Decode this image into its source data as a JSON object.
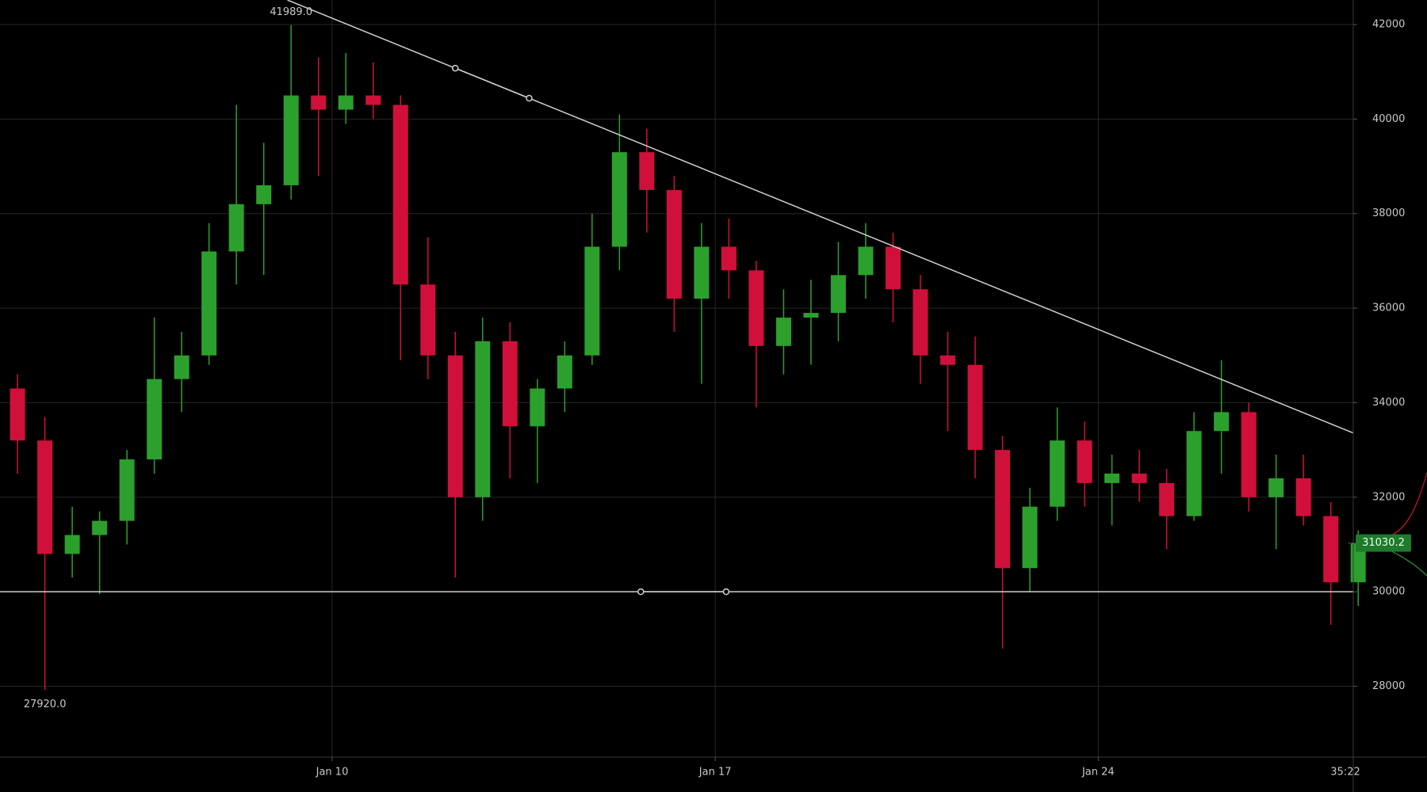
{
  "chart_data": {
    "type": "candlestick",
    "x": [
      4.0,
      4.5,
      5.0,
      5.5,
      6.0,
      6.5,
      7.0,
      7.5,
      8.0,
      8.5,
      9.0,
      9.5,
      10.0,
      10.5,
      11.0,
      11.5,
      12.0,
      12.5,
      13.0,
      13.5,
      14.0,
      14.5,
      15.0,
      15.5,
      16.0,
      16.5,
      17.0,
      17.5,
      18.0,
      18.5,
      19.0,
      19.5,
      20.0,
      20.5,
      21.0,
      21.5,
      22.0,
      22.5,
      23.0,
      23.5,
      24.0,
      24.5,
      25.0,
      25.5,
      26.0,
      26.5,
      27.0,
      27.5,
      28.0,
      28.5
    ],
    "open": [
      34300,
      33200,
      30800,
      31200,
      31500,
      32800,
      34500,
      35000,
      37200,
      38200,
      38600,
      40500,
      40200,
      40500,
      40300,
      36500,
      35000,
      32000,
      35300,
      33500,
      34300,
      35000,
      37300,
      39300,
      38500,
      36200,
      37300,
      36800,
      35200,
      35800,
      35900,
      36700,
      37300,
      36400,
      35000,
      34800,
      33000,
      30500,
      31800,
      33200,
      32300,
      32500,
      32300,
      31600,
      33400,
      33800,
      32000,
      32400,
      31600,
      30200
    ],
    "high": [
      34600,
      33700,
      31800,
      31700,
      33000,
      35800,
      35500,
      37800,
      40300,
      39500,
      41989,
      41300,
      41400,
      41200,
      40500,
      37500,
      35500,
      35800,
      35700,
      34500,
      35300,
      38000,
      40100,
      39800,
      38800,
      37800,
      37900,
      37000,
      36400,
      36600,
      37400,
      37800,
      37600,
      36700,
      35500,
      35400,
      33300,
      32200,
      33900,
      33600,
      32900,
      33000,
      32600,
      33800,
      34900,
      34000,
      32900,
      32900,
      31900,
      31300
    ],
    "low": [
      32500,
      27920,
      30300,
      29950,
      31000,
      32500,
      33800,
      34800,
      36500,
      36700,
      38300,
      38800,
      39900,
      40000,
      34900,
      34500,
      30300,
      31500,
      32400,
      32300,
      33800,
      34800,
      36800,
      37600,
      35500,
      34400,
      36200,
      33900,
      34600,
      34800,
      35300,
      36200,
      35700,
      34400,
      33400,
      32400,
      28800,
      30000,
      31500,
      31800,
      31400,
      31900,
      30900,
      31500,
      32500,
      31700,
      30900,
      31400,
      29300,
      29700
    ],
    "close": [
      33200,
      30800,
      31200,
      31500,
      32800,
      34500,
      35000,
      37200,
      38200,
      38600,
      40500,
      40200,
      40500,
      40300,
      36500,
      35000,
      32000,
      35300,
      33500,
      34300,
      35000,
      37300,
      39300,
      38500,
      36200,
      37300,
      36800,
      35200,
      35800,
      35900,
      36700,
      37300,
      36400,
      35000,
      34800,
      33000,
      30500,
      31800,
      33200,
      32300,
      32500,
      32300,
      31600,
      33400,
      33800,
      32000,
      32400,
      31600,
      30200,
      31030.2
    ],
    "up_color": "#2ca02c",
    "down_color": "#d0103a",
    "xlim": [
      3.93,
      28.66
    ],
    "ylim": [
      26500,
      42520
    ],
    "xticks": [
      {
        "value": 10,
        "label": "Jan 10"
      },
      {
        "value": 17,
        "label": "Jan 17"
      },
      {
        "value": 24,
        "label": "Jan 24"
      }
    ],
    "yticks": [
      28000,
      30000,
      32000,
      34000,
      36000,
      38000,
      40000,
      42000
    ],
    "grid": true,
    "high_label": {
      "value": 41989,
      "label": "41989.0"
    },
    "low_label": {
      "value": 27920,
      "label": "27920.0"
    },
    "last_price": 31030.2,
    "countdown": "35:22",
    "trendlines": [
      {
        "x": [
          12.25,
          13.6
        ],
        "y": [
          41077,
          40442
        ],
        "color": "#cfcfcf"
      },
      {
        "x": [
          15.64,
          17.2
        ],
        "y": [
          30000,
          30000
        ],
        "color": "#cfcfcf"
      }
    ]
  }
}
